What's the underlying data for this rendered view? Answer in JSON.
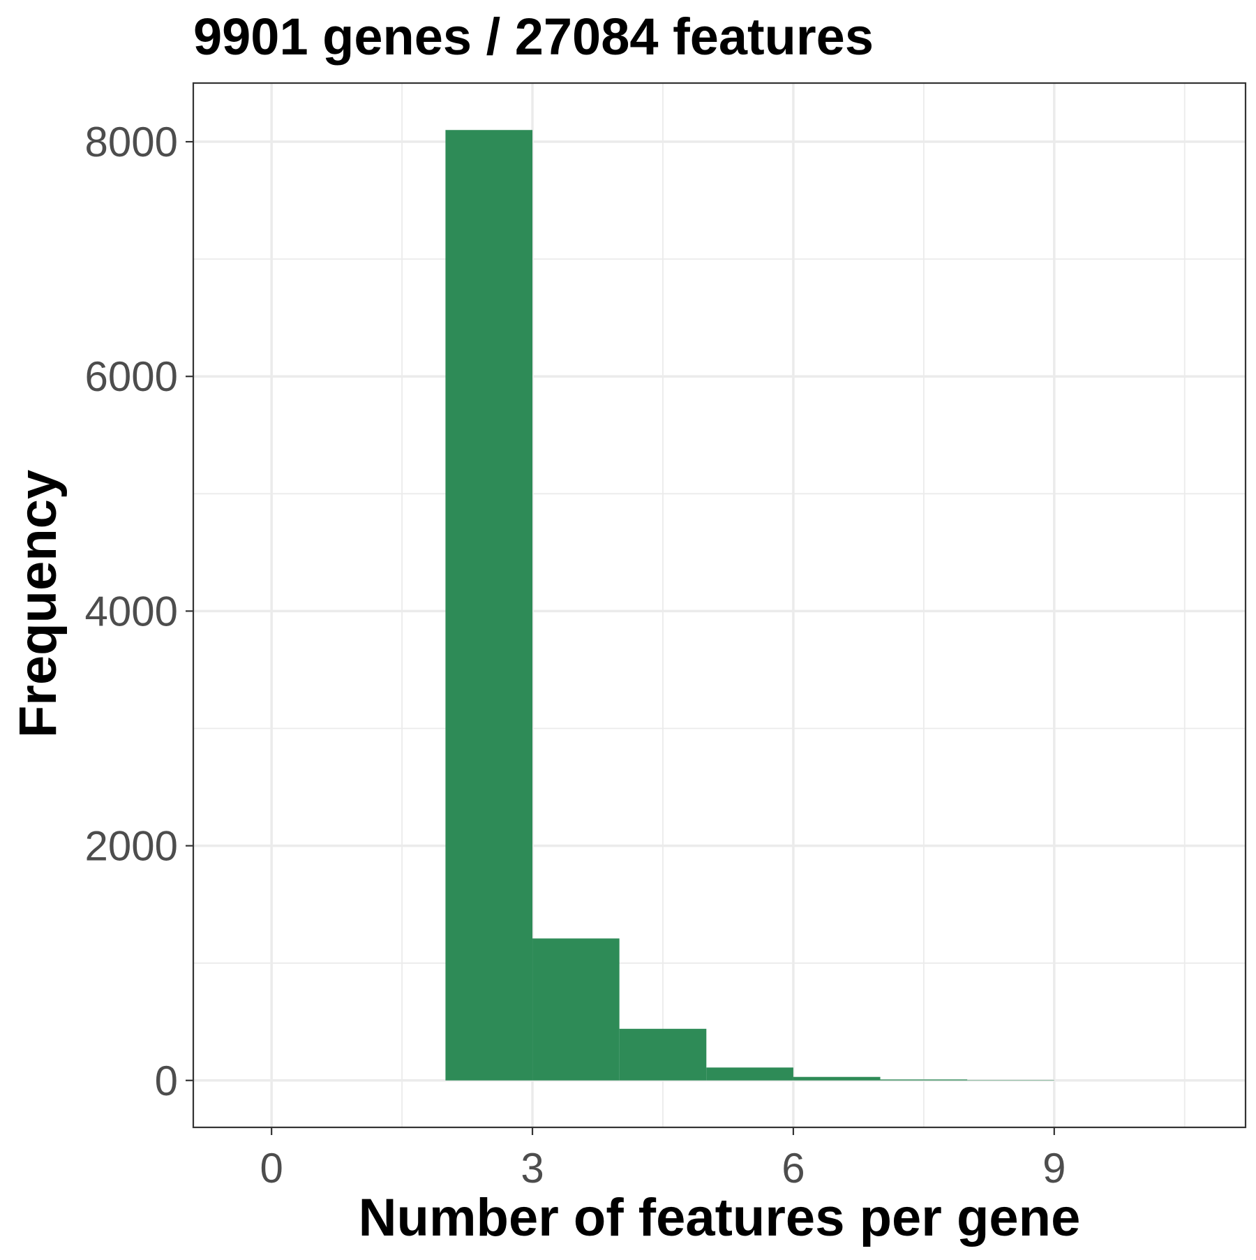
{
  "chart_data": {
    "type": "bar",
    "title": "9901 genes / 27084 features",
    "xlabel": "Number of features per gene",
    "ylabel": "Frequency",
    "xlim": [
      -0.9,
      11.2
    ],
    "ylim": [
      -400,
      8500
    ],
    "x_ticks": [
      0,
      3,
      6,
      9
    ],
    "y_ticks": [
      0,
      2000,
      4000,
      6000,
      8000
    ],
    "x_minor": [
      1.5,
      4.5,
      7.5,
      10.5
    ],
    "y_minor": [
      1000,
      3000,
      5000,
      7000
    ],
    "grid": true,
    "legend": "none",
    "bin_width": 1,
    "bins": [
      {
        "x_start": 2,
        "x_end": 3,
        "value": 8100
      },
      {
        "x_start": 3,
        "x_end": 4,
        "value": 1210
      },
      {
        "x_start": 4,
        "x_end": 5,
        "value": 440
      },
      {
        "x_start": 5,
        "x_end": 6,
        "value": 110
      },
      {
        "x_start": 6,
        "x_end": 7,
        "value": 30
      },
      {
        "x_start": 7,
        "x_end": 8,
        "value": 8
      },
      {
        "x_start": 8,
        "x_end": 9,
        "value": 3
      }
    ],
    "fill_color": "#2e8b57"
  }
}
